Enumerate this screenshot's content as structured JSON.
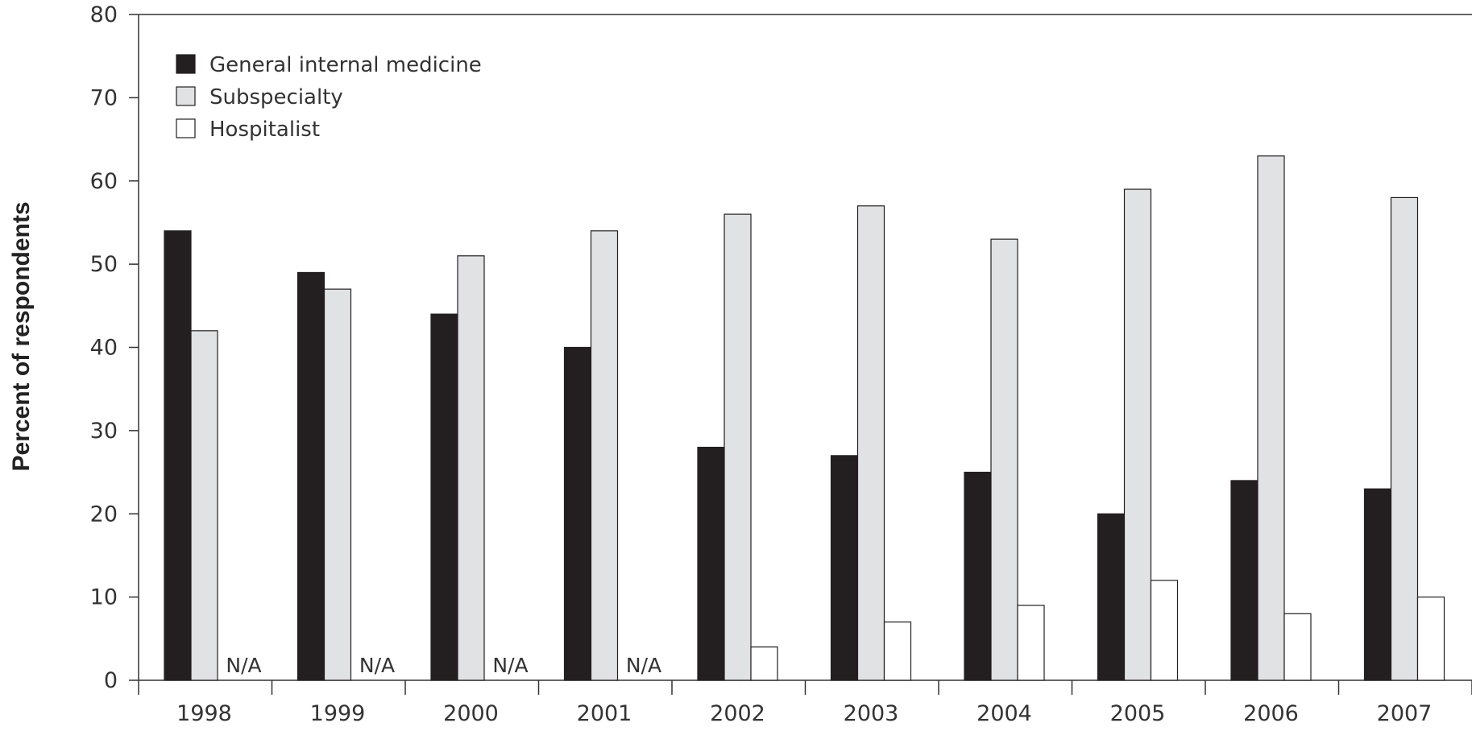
{
  "chart_data": {
    "type": "bar",
    "title": "",
    "xlabel": "",
    "ylabel": "Percent of respondents",
    "ylim": [
      0,
      80
    ],
    "yticks": [
      0,
      10,
      20,
      30,
      40,
      50,
      60,
      70,
      80
    ],
    "grid": false,
    "legend_position": "top-left",
    "categories": [
      "1998",
      "1999",
      "2000",
      "2001",
      "2002",
      "2003",
      "2004",
      "2005",
      "2006",
      "2007"
    ],
    "series": [
      {
        "name": "General internal medicine",
        "color": "#231f20",
        "values": [
          54,
          49,
          44,
          40,
          28,
          27,
          25,
          20,
          24,
          23
        ]
      },
      {
        "name": "Subspecialty",
        "color": "#e1e2e3",
        "values": [
          42,
          47,
          51,
          54,
          56,
          57,
          53,
          59,
          63,
          58
        ]
      },
      {
        "name": "Hospitalist",
        "color": "#ffffff",
        "values": [
          null,
          null,
          null,
          null,
          4,
          7,
          9,
          12,
          8,
          10
        ]
      }
    ],
    "na_label": "N/A"
  }
}
